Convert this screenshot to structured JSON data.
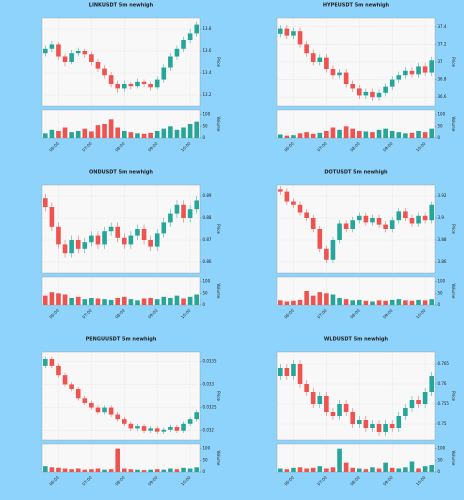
{
  "chart_data": [
    {
      "type": "candlestick",
      "title": "LINKUSDT 5m newhigh",
      "ylabel": "Price",
      "vlabel": "Volume",
      "categories": [
        null,
        null,
        "06:00",
        null,
        null,
        null,
        null,
        "07:00",
        null,
        null,
        null,
        null,
        "08:00",
        null,
        null,
        null,
        null,
        "09:00",
        null,
        null,
        null,
        null,
        "10:00",
        null
      ],
      "open": [
        13.58,
        13.62,
        13.66,
        13.55,
        13.5,
        13.58,
        13.6,
        13.57,
        13.5,
        13.44,
        13.38,
        13.3,
        13.26,
        13.3,
        13.28,
        13.32,
        13.3,
        13.27,
        13.34,
        13.45,
        13.55,
        13.62,
        13.7,
        13.76
      ],
      "high": [
        13.65,
        13.69,
        13.68,
        13.58,
        13.61,
        13.63,
        13.62,
        13.59,
        13.53,
        13.47,
        13.41,
        13.33,
        13.33,
        13.32,
        13.35,
        13.34,
        13.32,
        13.37,
        13.48,
        13.58,
        13.65,
        13.73,
        13.8,
        13.87
      ],
      "low": [
        13.55,
        13.59,
        13.52,
        13.46,
        13.48,
        13.55,
        13.54,
        13.47,
        13.41,
        13.35,
        13.27,
        13.22,
        13.23,
        13.25,
        13.26,
        13.27,
        13.24,
        13.25,
        13.31,
        13.42,
        13.52,
        13.59,
        13.67,
        13.73
      ],
      "close": [
        13.62,
        13.66,
        13.55,
        13.5,
        13.58,
        13.6,
        13.57,
        13.5,
        13.44,
        13.38,
        13.3,
        13.26,
        13.3,
        13.28,
        13.32,
        13.3,
        13.27,
        13.34,
        13.45,
        13.55,
        13.62,
        13.7,
        13.76,
        13.84
      ],
      "volume": [
        20,
        35,
        30,
        45,
        25,
        30,
        40,
        28,
        55,
        60,
        80,
        45,
        30,
        25,
        20,
        18,
        22,
        30,
        40,
        50,
        35,
        45,
        60,
        70
      ],
      "ylim": [
        13.1,
        13.9
      ],
      "yticks": [
        13.2,
        13.4,
        13.6,
        13.8
      ],
      "vlim": [
        0,
        120
      ],
      "vticks": [
        0,
        50,
        100
      ],
      "up_color": "#26a69a",
      "down_color": "#ef5350",
      "grid": true
    },
    {
      "type": "candlestick",
      "title": "HYPEUSDT 5m newhigh",
      "ylabel": "Price",
      "vlabel": "Volume",
      "categories": [
        null,
        null,
        "06:00",
        null,
        null,
        null,
        null,
        "07:00",
        null,
        null,
        null,
        null,
        "08:00",
        null,
        null,
        null,
        null,
        "09:00",
        null,
        null,
        null,
        null,
        "10:00",
        null
      ],
      "open": [
        37.32,
        37.38,
        37.3,
        37.35,
        37.2,
        37.1,
        37.0,
        37.05,
        36.92,
        36.85,
        36.88,
        36.75,
        36.7,
        36.62,
        36.66,
        36.6,
        36.65,
        36.72,
        36.8,
        36.85,
        36.9,
        36.86,
        36.95,
        36.88
      ],
      "high": [
        37.42,
        37.42,
        37.39,
        37.39,
        37.24,
        37.14,
        37.09,
        37.09,
        36.96,
        36.92,
        36.92,
        36.79,
        36.74,
        36.7,
        36.7,
        36.69,
        36.76,
        36.84,
        36.89,
        36.94,
        36.94,
        36.99,
        36.99,
        37.06
      ],
      "low": [
        37.28,
        37.26,
        37.26,
        37.16,
        37.06,
        36.96,
        36.96,
        36.88,
        36.81,
        36.81,
        36.71,
        36.66,
        36.58,
        36.58,
        36.56,
        36.56,
        36.61,
        36.68,
        36.76,
        36.81,
        36.82,
        36.82,
        36.84,
        36.84
      ],
      "close": [
        37.38,
        37.3,
        37.35,
        37.2,
        37.1,
        37.0,
        37.05,
        36.92,
        36.85,
        36.88,
        36.75,
        36.7,
        36.62,
        36.66,
        36.6,
        36.65,
        36.72,
        36.8,
        36.85,
        36.9,
        36.86,
        36.95,
        36.88,
        37.02
      ],
      "volume": [
        15,
        10,
        12,
        20,
        25,
        18,
        22,
        30,
        45,
        35,
        50,
        40,
        30,
        28,
        25,
        35,
        40,
        30,
        25,
        20,
        22,
        30,
        25,
        40
      ],
      "ylim": [
        36.5,
        37.5
      ],
      "yticks": [
        36.6,
        36.8,
        37,
        37.2,
        37.4
      ],
      "vlim": [
        0,
        120
      ],
      "vticks": [
        0,
        50,
        100
      ],
      "up_color": "#26a69a",
      "down_color": "#ef5350",
      "grid": true
    },
    {
      "type": "candlestick",
      "title": "ONDUSDT 5m newhigh",
      "ylabel": "Price",
      "vlabel": "Volume",
      "categories": [
        null,
        null,
        "06:00",
        null,
        null,
        null,
        null,
        "07:00",
        null,
        null,
        null,
        null,
        "08:00",
        null,
        null,
        null,
        null,
        "09:00",
        null,
        null,
        null,
        null,
        "10:00",
        null
      ],
      "open": [
        0.889,
        0.885,
        0.876,
        0.868,
        0.864,
        0.87,
        0.866,
        0.869,
        0.872,
        0.868,
        0.874,
        0.876,
        0.871,
        0.868,
        0.872,
        0.875,
        0.87,
        0.867,
        0.873,
        0.878,
        0.882,
        0.886,
        0.88,
        0.884
      ],
      "high": [
        0.891,
        0.887,
        0.878,
        0.87,
        0.872,
        0.872,
        0.871,
        0.874,
        0.874,
        0.876,
        0.878,
        0.878,
        0.873,
        0.874,
        0.877,
        0.877,
        0.872,
        0.875,
        0.88,
        0.884,
        0.888,
        0.888,
        0.886,
        0.89
      ],
      "low": [
        0.883,
        0.874,
        0.866,
        0.862,
        0.862,
        0.864,
        0.864,
        0.867,
        0.866,
        0.866,
        0.872,
        0.869,
        0.866,
        0.866,
        0.87,
        0.868,
        0.865,
        0.865,
        0.871,
        0.876,
        0.88,
        0.878,
        0.878,
        0.882
      ],
      "close": [
        0.885,
        0.876,
        0.868,
        0.864,
        0.87,
        0.866,
        0.869,
        0.872,
        0.868,
        0.874,
        0.876,
        0.871,
        0.868,
        0.872,
        0.875,
        0.87,
        0.867,
        0.873,
        0.878,
        0.882,
        0.886,
        0.88,
        0.884,
        0.888
      ],
      "volume": [
        40,
        55,
        50,
        45,
        30,
        35,
        25,
        30,
        28,
        25,
        22,
        30,
        35,
        25,
        20,
        28,
        30,
        25,
        35,
        30,
        40,
        28,
        35,
        45
      ],
      "ylim": [
        0.855,
        0.895
      ],
      "yticks": [
        0.86,
        0.87,
        0.88,
        0.89
      ],
      "vlim": [
        0,
        120
      ],
      "vticks": [
        0,
        50,
        100
      ],
      "up_color": "#26a69a",
      "down_color": "#ef5350",
      "grid": true
    },
    {
      "type": "candlestick",
      "title": "DOTUSDT 5m newhigh",
      "ylabel": "Price",
      "vlabel": "Volume",
      "categories": [
        null,
        null,
        "06:00",
        null,
        null,
        null,
        null,
        "07:00",
        null,
        null,
        null,
        null,
        "08:00",
        null,
        null,
        null,
        null,
        "09:00",
        null,
        null,
        null,
        null,
        "10:00",
        null
      ],
      "open": [
        3.926,
        3.924,
        3.915,
        3.912,
        3.905,
        3.9,
        3.89,
        3.872,
        3.862,
        3.88,
        3.895,
        3.89,
        3.898,
        3.902,
        3.896,
        3.9,
        3.894,
        3.89,
        3.898,
        3.906,
        3.9,
        3.895,
        3.902,
        3.898
      ],
      "high": [
        3.929,
        3.927,
        3.918,
        3.915,
        3.908,
        3.903,
        3.893,
        3.875,
        3.883,
        3.898,
        3.898,
        3.901,
        3.905,
        3.905,
        3.903,
        3.903,
        3.897,
        3.901,
        3.909,
        3.909,
        3.903,
        3.905,
        3.905,
        3.915
      ],
      "low": [
        3.921,
        3.912,
        3.909,
        3.902,
        3.897,
        3.887,
        3.869,
        3.859,
        3.859,
        3.877,
        3.887,
        3.887,
        3.895,
        3.893,
        3.893,
        3.891,
        3.887,
        3.887,
        3.895,
        3.897,
        3.892,
        3.892,
        3.895,
        3.895
      ],
      "close": [
        3.924,
        3.915,
        3.912,
        3.905,
        3.9,
        3.89,
        3.872,
        3.862,
        3.88,
        3.895,
        3.89,
        3.898,
        3.902,
        3.896,
        3.9,
        3.894,
        3.89,
        3.898,
        3.906,
        3.9,
        3.895,
        3.902,
        3.898,
        3.912
      ],
      "volume": [
        20,
        15,
        18,
        22,
        60,
        40,
        55,
        50,
        45,
        30,
        25,
        20,
        22,
        18,
        15,
        20,
        18,
        22,
        25,
        20,
        18,
        22,
        20,
        25
      ],
      "ylim": [
        3.85,
        3.93
      ],
      "yticks": [
        3.86,
        3.88,
        3.9,
        3.92
      ],
      "vlim": [
        0,
        120
      ],
      "vticks": [
        0,
        50,
        100
      ],
      "up_color": "#26a69a",
      "down_color": "#ef5350",
      "grid": true
    },
    {
      "type": "candlestick",
      "title": "PENGUUSDT 5m newhigh",
      "ylabel": "Price",
      "vlabel": "Volume",
      "categories": [
        null,
        null,
        "06:00",
        null,
        null,
        null,
        null,
        "07:00",
        null,
        null,
        null,
        null,
        "08:00",
        null,
        null,
        null,
        null,
        "09:00",
        null,
        null,
        null,
        null,
        "10:00",
        null
      ],
      "open": [
        0.0334,
        0.03355,
        0.0334,
        0.0332,
        0.033,
        0.0329,
        0.0327,
        0.0326,
        0.0325,
        0.0324,
        0.0325,
        0.03235,
        0.03225,
        0.03215,
        0.03205,
        0.0321,
        0.032,
        0.03205,
        0.03198,
        0.03202,
        0.03208,
        0.032,
        0.03215,
        0.03225
      ],
      "high": [
        0.0336,
        0.0336,
        0.03345,
        0.03325,
        0.03305,
        0.03295,
        0.03275,
        0.03265,
        0.03255,
        0.03255,
        0.03255,
        0.0324,
        0.0323,
        0.0322,
        0.03215,
        0.03215,
        0.0321,
        0.0321,
        0.03207,
        0.03213,
        0.03213,
        0.0322,
        0.0323,
        0.03245
      ],
      "low": [
        0.03335,
        0.03335,
        0.03315,
        0.03295,
        0.03285,
        0.03265,
        0.03255,
        0.03245,
        0.03235,
        0.03235,
        0.0323,
        0.0322,
        0.0321,
        0.032,
        0.032,
        0.03195,
        0.03195,
        0.03193,
        0.03193,
        0.03197,
        0.03195,
        0.03195,
        0.0321,
        0.0322
      ],
      "close": [
        0.03355,
        0.0334,
        0.0332,
        0.033,
        0.0329,
        0.0327,
        0.0326,
        0.0325,
        0.0324,
        0.0325,
        0.03235,
        0.03225,
        0.03215,
        0.03205,
        0.0321,
        0.032,
        0.03205,
        0.03198,
        0.03202,
        0.03208,
        0.032,
        0.03215,
        0.03225,
        0.0324
      ],
      "volume": [
        25,
        20,
        18,
        15,
        12,
        15,
        10,
        12,
        15,
        10,
        12,
        100,
        15,
        12,
        10,
        8,
        10,
        12,
        10,
        15,
        12,
        18,
        15,
        20
      ],
      "ylim": [
        0.0318,
        0.0337
      ],
      "yticks": [
        0.032,
        0.0325,
        0.033,
        0.0335
      ],
      "vlim": [
        0,
        120
      ],
      "vticks": [
        0,
        50,
        100
      ],
      "up_color": "#26a69a",
      "down_color": "#ef5350",
      "grid": true
    },
    {
      "type": "candlestick",
      "title": "WLDUSDT 5m newhigh",
      "ylabel": "Price",
      "vlabel": "Volume",
      "categories": [
        null,
        null,
        "06:00",
        null,
        null,
        null,
        null,
        "07:00",
        null,
        null,
        null,
        null,
        "08:00",
        null,
        null,
        null,
        null,
        "09:00",
        null,
        null,
        null,
        null,
        "10:00",
        null
      ],
      "open": [
        0.762,
        0.764,
        0.762,
        0.765,
        0.76,
        0.758,
        0.755,
        0.757,
        0.753,
        0.752,
        0.755,
        0.753,
        0.75,
        0.751,
        0.749,
        0.75,
        0.748,
        0.75,
        0.749,
        0.752,
        0.754,
        0.756,
        0.755,
        0.758
      ],
      "high": [
        0.765,
        0.765,
        0.766,
        0.766,
        0.761,
        0.759,
        0.758,
        0.758,
        0.754,
        0.756,
        0.756,
        0.754,
        0.752,
        0.752,
        0.751,
        0.751,
        0.751,
        0.751,
        0.753,
        0.755,
        0.757,
        0.757,
        0.759,
        0.763
      ],
      "low": [
        0.761,
        0.761,
        0.761,
        0.759,
        0.757,
        0.754,
        0.754,
        0.752,
        0.751,
        0.751,
        0.752,
        0.749,
        0.749,
        0.748,
        0.748,
        0.747,
        0.747,
        0.748,
        0.748,
        0.751,
        0.753,
        0.754,
        0.754,
        0.757
      ],
      "close": [
        0.764,
        0.762,
        0.765,
        0.76,
        0.758,
        0.755,
        0.757,
        0.753,
        0.752,
        0.755,
        0.753,
        0.75,
        0.751,
        0.749,
        0.75,
        0.748,
        0.75,
        0.749,
        0.752,
        0.754,
        0.756,
        0.755,
        0.758,
        0.762
      ],
      "volume": [
        15,
        12,
        18,
        20,
        15,
        18,
        25,
        15,
        20,
        100,
        40,
        18,
        15,
        12,
        20,
        15,
        40,
        18,
        15,
        20,
        45,
        15,
        25,
        30
      ],
      "ylim": [
        0.746,
        0.768
      ],
      "yticks": [
        0.75,
        0.755,
        0.76,
        0.765
      ],
      "vlim": [
        0,
        120
      ],
      "vticks": [
        0,
        50,
        100
      ],
      "up_color": "#26a69a",
      "down_color": "#ef5350",
      "grid": true
    }
  ]
}
